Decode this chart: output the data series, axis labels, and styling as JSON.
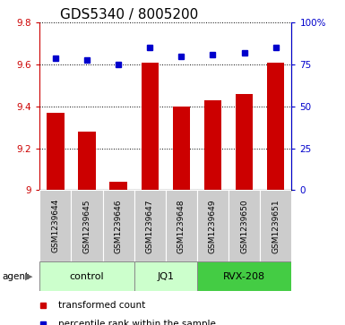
{
  "title": "GDS5340 / 8005200",
  "samples": [
    "GSM1239644",
    "GSM1239645",
    "GSM1239646",
    "GSM1239647",
    "GSM1239648",
    "GSM1239649",
    "GSM1239650",
    "GSM1239651"
  ],
  "transformed_counts": [
    9.37,
    9.28,
    9.04,
    9.61,
    9.4,
    9.43,
    9.46,
    9.61
  ],
  "percentile_ranks": [
    79,
    78,
    75,
    85,
    80,
    81,
    82,
    85
  ],
  "ylim_left": [
    9.0,
    9.8
  ],
  "ylim_right": [
    0,
    100
  ],
  "yticks_left": [
    9.0,
    9.2,
    9.4,
    9.6,
    9.8
  ],
  "ytick_labels_left": [
    "9",
    "9.2",
    "9.4",
    "9.6",
    "9.8"
  ],
  "yticks_right": [
    0,
    25,
    50,
    75,
    100
  ],
  "ytick_labels_right": [
    "0",
    "25",
    "50",
    "75",
    "100%"
  ],
  "bar_color": "#cc0000",
  "dot_color": "#0000cc",
  "bar_width": 0.55,
  "group_data": [
    {
      "label": "control",
      "start": 0,
      "end": 2,
      "color": "#ccffcc"
    },
    {
      "label": "JQ1",
      "start": 3,
      "end": 4,
      "color": "#ccffcc"
    },
    {
      "label": "RVX-208",
      "start": 5,
      "end": 7,
      "color": "#44cc44"
    }
  ],
  "agent_label": "agent",
  "legend_bar_label": "transformed count",
  "legend_dot_label": "percentile rank within the sample",
  "title_fontsize": 11,
  "tick_fontsize": 7.5,
  "sample_fontsize": 6.5,
  "group_fontsize": 8,
  "legend_fontsize": 7.5
}
